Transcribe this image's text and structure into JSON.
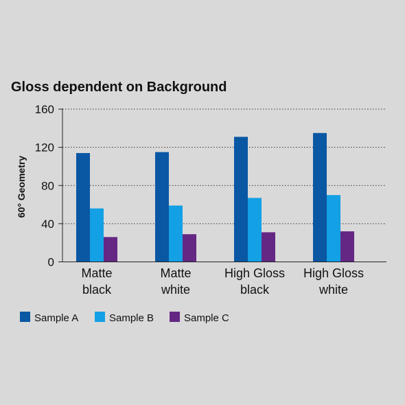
{
  "chart_data": {
    "type": "bar",
    "title": "Gloss dependent on Background",
    "xlabel": "",
    "ylabel": "60° Geometry",
    "ylim": [
      0,
      160
    ],
    "yticks": [
      "0",
      "40",
      "80",
      "120",
      "160"
    ],
    "categories": [
      [
        "Matte",
        "black"
      ],
      [
        "Matte",
        "white"
      ],
      [
        "High Gloss",
        "black"
      ],
      [
        "High Gloss",
        "white"
      ]
    ],
    "series": [
      {
        "name": "Sample A",
        "color": "#0a57a4",
        "values": [
          114,
          115,
          131,
          135
        ]
      },
      {
        "name": "Sample B",
        "color": "#14a0e4",
        "values": [
          56,
          59,
          67,
          70
        ]
      },
      {
        "name": "Sample C",
        "color": "#652784",
        "values": [
          26,
          29,
          31,
          32
        ]
      }
    ],
    "grid": "dotted horizontal",
    "legend_position": "bottom-left"
  }
}
